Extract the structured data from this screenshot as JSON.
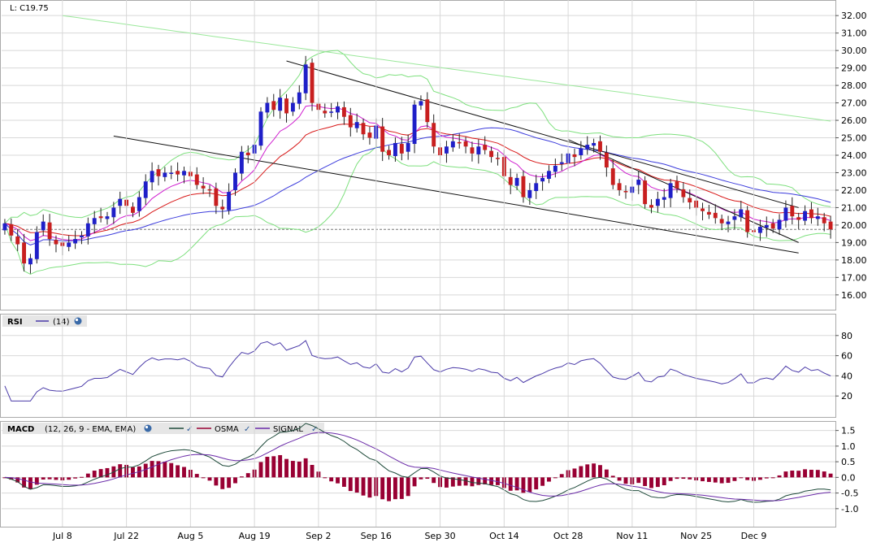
{
  "last_quote": "L: C19.75",
  "colors": {
    "grid": "#d8d8d8",
    "up": "#1f1fc8",
    "down": "#c81f1f",
    "bollinger": "#7ee07e",
    "sma_long": "#9be89b",
    "ma_red": "#d81818",
    "ma_magenta": "#d020d0",
    "ma_blue": "#3c3cdc",
    "trendline": "#111111",
    "rsi_line": "#4a3aa8",
    "macd_line": "#1e4a3a",
    "signal_line": "#6a2aa8",
    "osma_bar": "#990033"
  },
  "panels": {
    "rsi": {
      "label": "RSI",
      "params": "(14)"
    },
    "macd": {
      "label": "MACD",
      "params": "(12, 26, 9 - EMA, EMA)",
      "legend": [
        "",
        "OSMA",
        "SIGNAL"
      ]
    }
  },
  "chart_data": [
    {
      "type": "candlestick",
      "title": "",
      "ylim": [
        15.2,
        32.8
      ],
      "y_ticks": [
        "32.00",
        "31.00",
        "30.00",
        "29.00",
        "28.00",
        "27.00",
        "26.00",
        "25.00",
        "24.00",
        "23.00",
        "22.00",
        "21.00",
        "20.00",
        "19.00",
        "18.00",
        "17.00",
        "16.00"
      ],
      "x_ticks": [
        {
          "label": "Jul 8",
          "index": 9
        },
        {
          "label": "Jul 22",
          "index": 19
        },
        {
          "label": "Aug 5",
          "index": 29
        },
        {
          "label": "Aug 19",
          "index": 39
        },
        {
          "label": "Sep 2",
          "index": 49
        },
        {
          "label": "Sep 16",
          "index": 58
        },
        {
          "label": "Sep 30",
          "index": 68
        },
        {
          "label": "Oct 14",
          "index": 78
        },
        {
          "label": "Oct 28",
          "index": 88
        },
        {
          "label": "Nov 11",
          "index": 98
        },
        {
          "label": "Nov 25",
          "index": 108
        },
        {
          "label": "Dec 9",
          "index": 117
        }
      ],
      "reference_line": 19.75,
      "close": [
        20.1,
        19.4,
        18.9,
        17.8,
        18.1,
        19.6,
        20.2,
        19.2,
        18.9,
        18.8,
        19.0,
        19.2,
        19.4,
        20.1,
        20.4,
        20.4,
        20.5,
        21.0,
        21.5,
        21.1,
        20.7,
        21.6,
        22.5,
        23.1,
        22.8,
        23.0,
        23.0,
        22.9,
        23.1,
        22.8,
        22.3,
        22.1,
        22.0,
        21.1,
        20.9,
        21.9,
        23.0,
        24.2,
        24.0,
        24.6,
        26.5,
        27.0,
        26.6,
        27.3,
        26.4,
        27.0,
        27.6,
        29.2,
        27.0,
        26.6,
        26.4,
        26.5,
        26.8,
        26.2,
        25.6,
        25.9,
        25.2,
        25.0,
        25.7,
        24.2,
        24.0,
        24.7,
        24.1,
        24.7,
        26.9,
        27.1,
        25.9,
        24.5,
        24.0,
        24.5,
        24.8,
        24.7,
        24.5,
        24.1,
        24.5,
        24.3,
        23.9,
        23.8,
        22.8,
        22.3,
        22.7,
        21.6,
        22.0,
        22.4,
        22.7,
        23.1,
        23.4,
        23.6,
        24.1,
        23.9,
        24.4,
        24.6,
        24.7,
        24.2,
        23.3,
        22.3,
        22.0,
        21.9,
        22.2,
        22.6,
        21.2,
        21.0,
        21.5,
        21.6,
        22.4,
        22.1,
        21.6,
        21.3,
        21.0,
        20.8,
        20.6,
        20.4,
        20.1,
        20.2,
        20.5,
        20.9,
        19.6,
        19.6,
        19.9,
        20.0,
        19.8,
        20.3,
        21.0,
        20.5,
        20.3,
        20.8,
        20.4,
        20.5,
        20.1,
        19.75
      ],
      "series": [
        {
          "name": "Bollinger upper"
        },
        {
          "name": "Bollinger lower"
        },
        {
          "name": "Long moving average"
        },
        {
          "name": "Moving average (red)"
        },
        {
          "name": "Moving average (magenta)"
        },
        {
          "name": "Moving average (blue)"
        }
      ],
      "trendlines": [
        {
          "from": [
            17,
            25.1
          ],
          "to": [
            124,
            18.4
          ]
        },
        {
          "from": [
            44,
            29.4
          ],
          "to": [
            124,
            21.0
          ]
        },
        {
          "from": [
            88,
            24.9
          ],
          "to": [
            124,
            19.0
          ]
        }
      ]
    },
    {
      "type": "line",
      "title": "RSI",
      "ylim": [
        0,
        100
      ],
      "y_ticks": [
        "80",
        "60",
        "40",
        "20"
      ]
    },
    {
      "type": "bar+line",
      "title": "MACD",
      "ylim": [
        -1.55,
        1.75
      ],
      "y_ticks": [
        "1.5",
        "1.0",
        "0.5",
        "0.0",
        "-0.5",
        "-1.0"
      ],
      "series": [
        {
          "name": ""
        },
        {
          "name": "SIGNAL"
        },
        {
          "name": "OSMA"
        }
      ]
    }
  ]
}
